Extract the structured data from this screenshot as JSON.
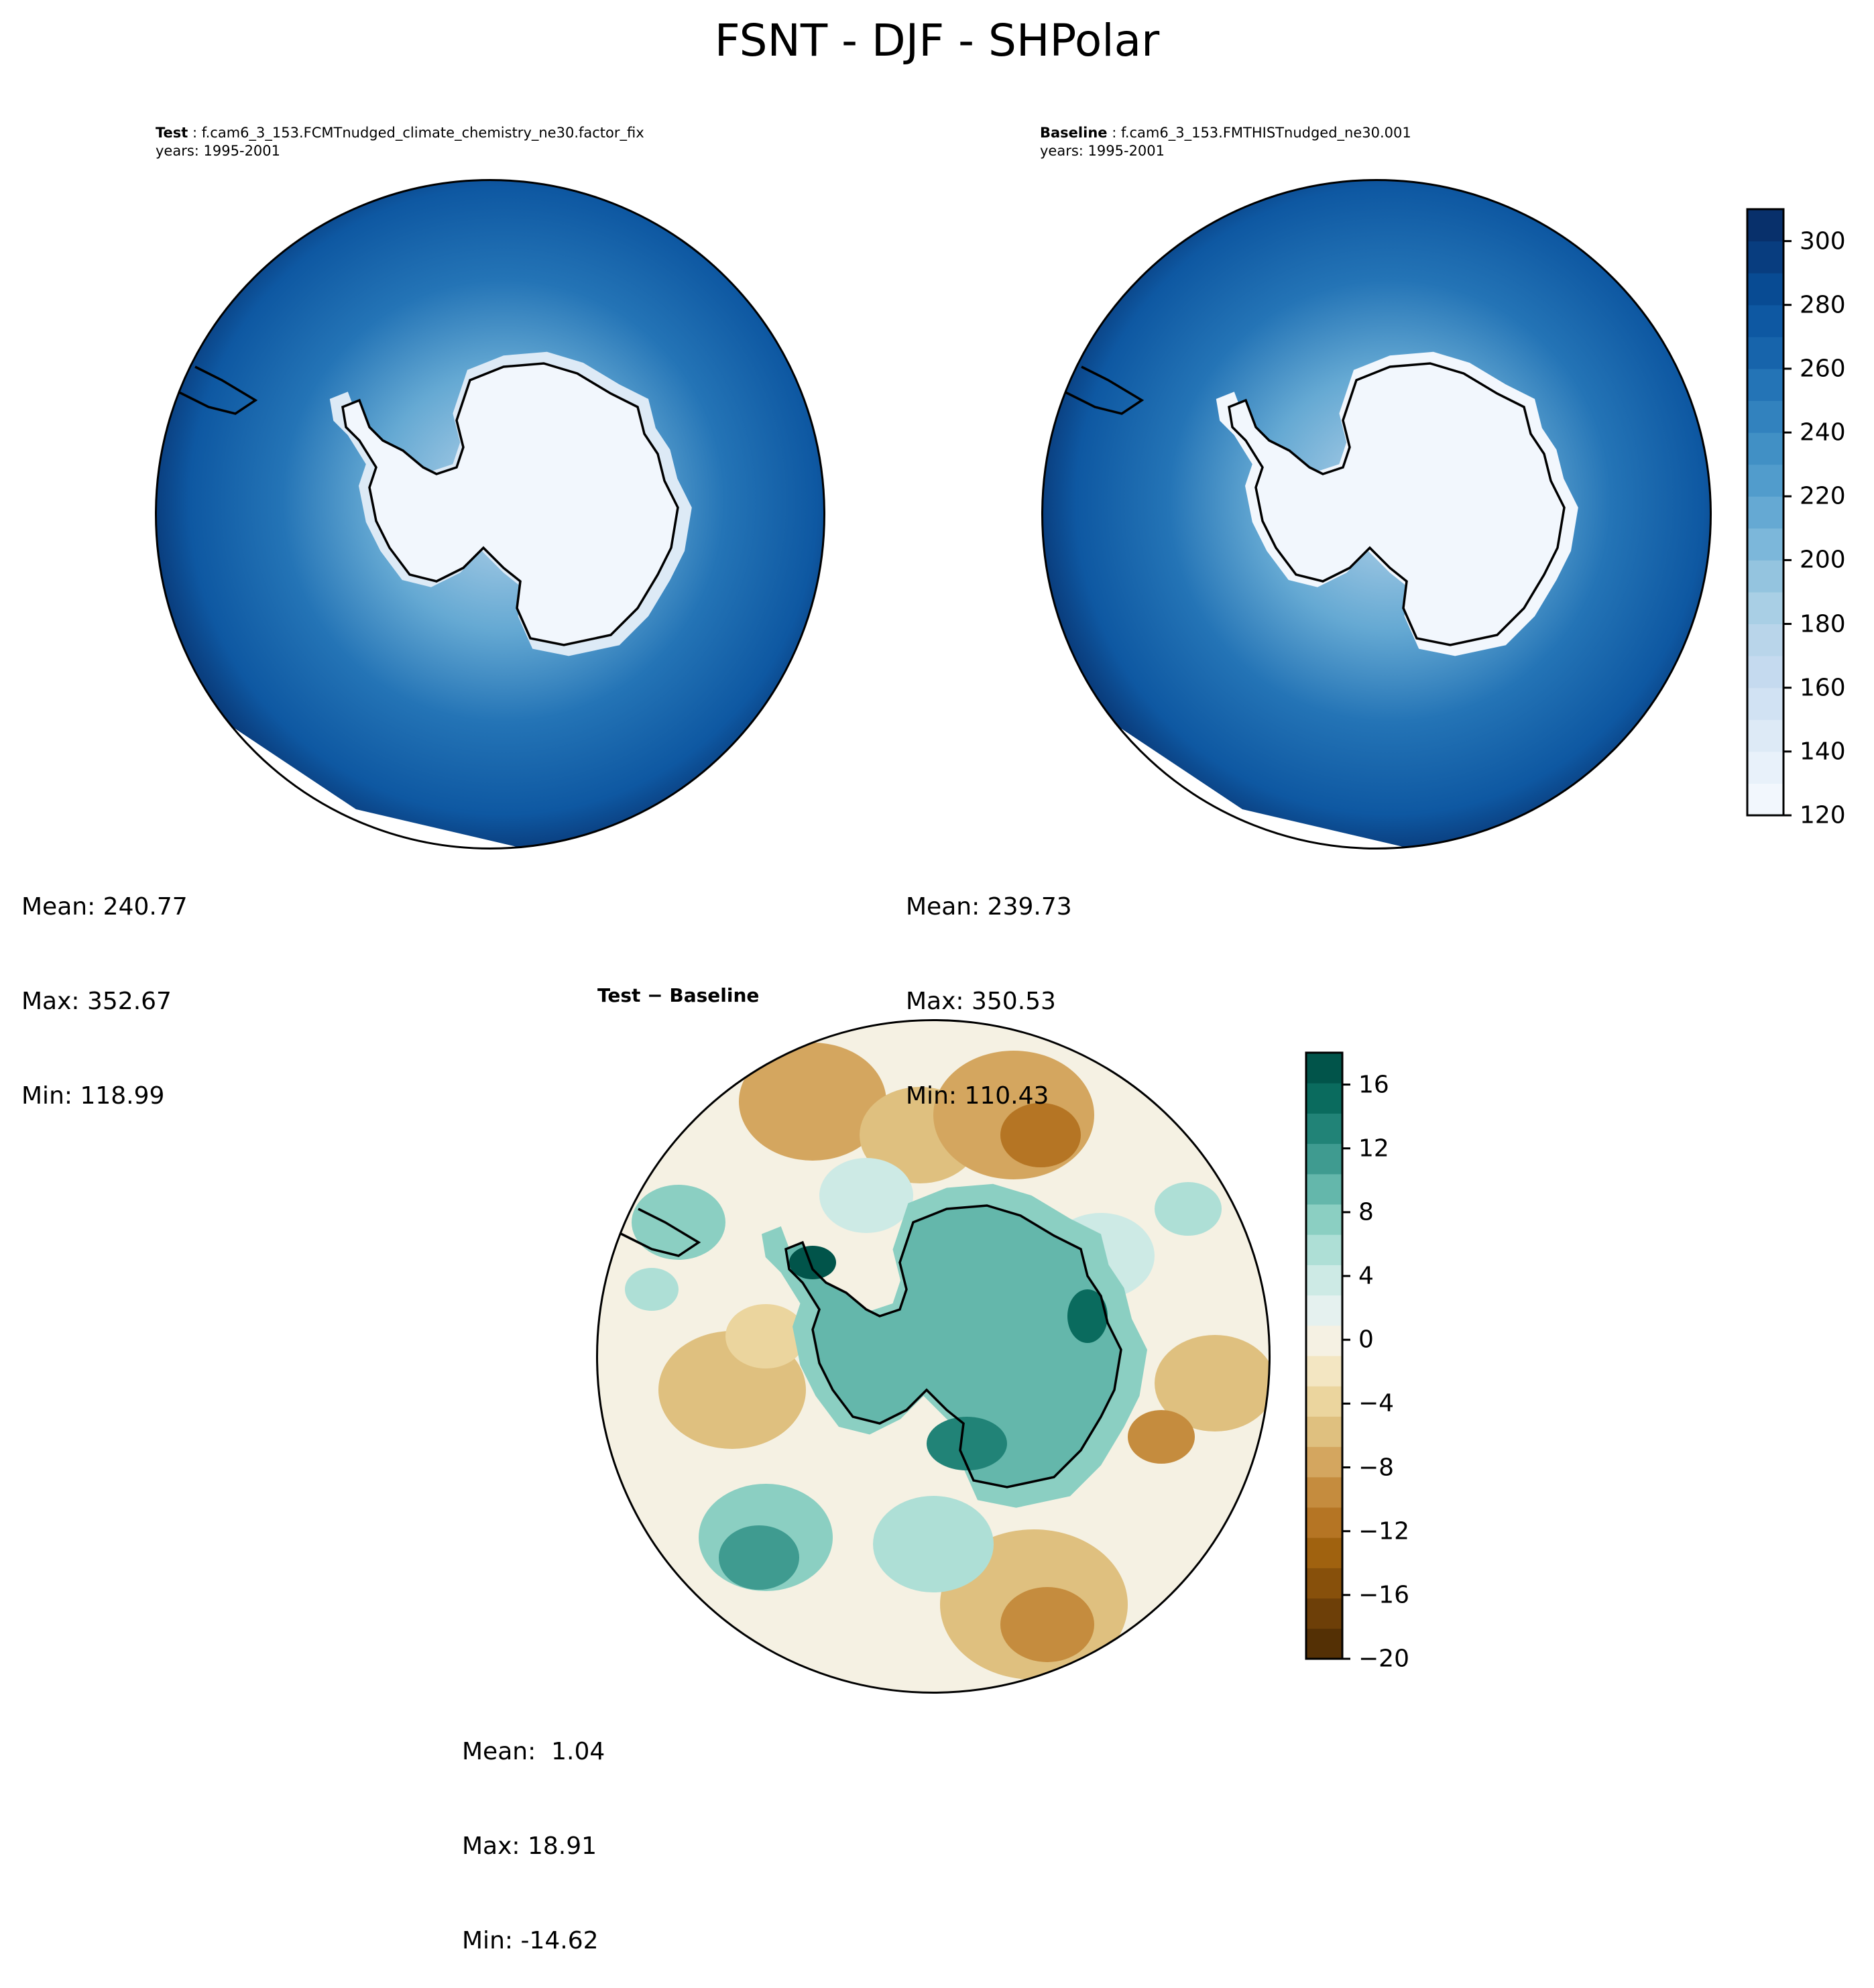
{
  "chart_data": {
    "type": "heatmap",
    "title": "FSNT - DJF - SHPolar",
    "projection": "south-polar-stereographic",
    "panels": [
      {
        "label": "Test",
        "case": "f.cam6_3_153.FCMTnudged_climate_chemistry_ne30.factor_fix",
        "years": "years: 1995-2001",
        "stats": {
          "mean": "Mean: 240.77",
          "max": "Max: 352.67",
          "min": "Min: 118.99"
        },
        "colormap": "Blues"
      },
      {
        "label": "Baseline",
        "case": "f.cam6_3_153.FMTHISTnudged_ne30.001",
        "years": "years: 1995-2001",
        "stats": {
          "mean": "Mean: 239.73",
          "max": "Max: 350.53",
          "min": "Min: 110.43"
        },
        "colormap": "Blues"
      },
      {
        "label": "Test − Baseline",
        "stats": {
          "mean": "Mean:  1.04",
          "max": "Max: 18.91",
          "min": "Min: -14.62"
        },
        "colormap": "BrBG"
      }
    ],
    "colorbars": [
      {
        "range": [
          120,
          310
        ],
        "step": 10,
        "ticks": [
          "120",
          "140",
          "160",
          "180",
          "200",
          "220",
          "240",
          "260",
          "280",
          "300"
        ],
        "colors": [
          "#f2f7fd",
          "#e8f1fa",
          "#ddeaf6",
          "#d1e2f3",
          "#c5daef",
          "#b9d5ea",
          "#a9cfe5",
          "#94c4df",
          "#7cb7da",
          "#65a9d3",
          "#519ccc",
          "#4190c5",
          "#3282be",
          "#2474b6",
          "#1764ab",
          "#0e58a2",
          "#084b93",
          "#083d7f",
          "#08306b"
        ]
      },
      {
        "range": [
          -20,
          18
        ],
        "step": 2,
        "ticks": [
          "−20",
          "−16",
          "−12",
          "−8",
          "−4",
          "0",
          "4",
          "8",
          "12",
          "16"
        ],
        "colors": [
          "#543005",
          "#6d3f08",
          "#87500b",
          "#a0620f",
          "#b57524",
          "#c58c3e",
          "#d4a65f",
          "#dfc07f",
          "#ebd59e",
          "#f3e6c2",
          "#f5f1e3",
          "#e5f1ef",
          "#cdeae5",
          "#aedfd6",
          "#8bcfc2",
          "#64b7ab",
          "#3f9b90",
          "#218377",
          "#0a6b5e",
          "#01544a"
        ]
      }
    ]
  }
}
